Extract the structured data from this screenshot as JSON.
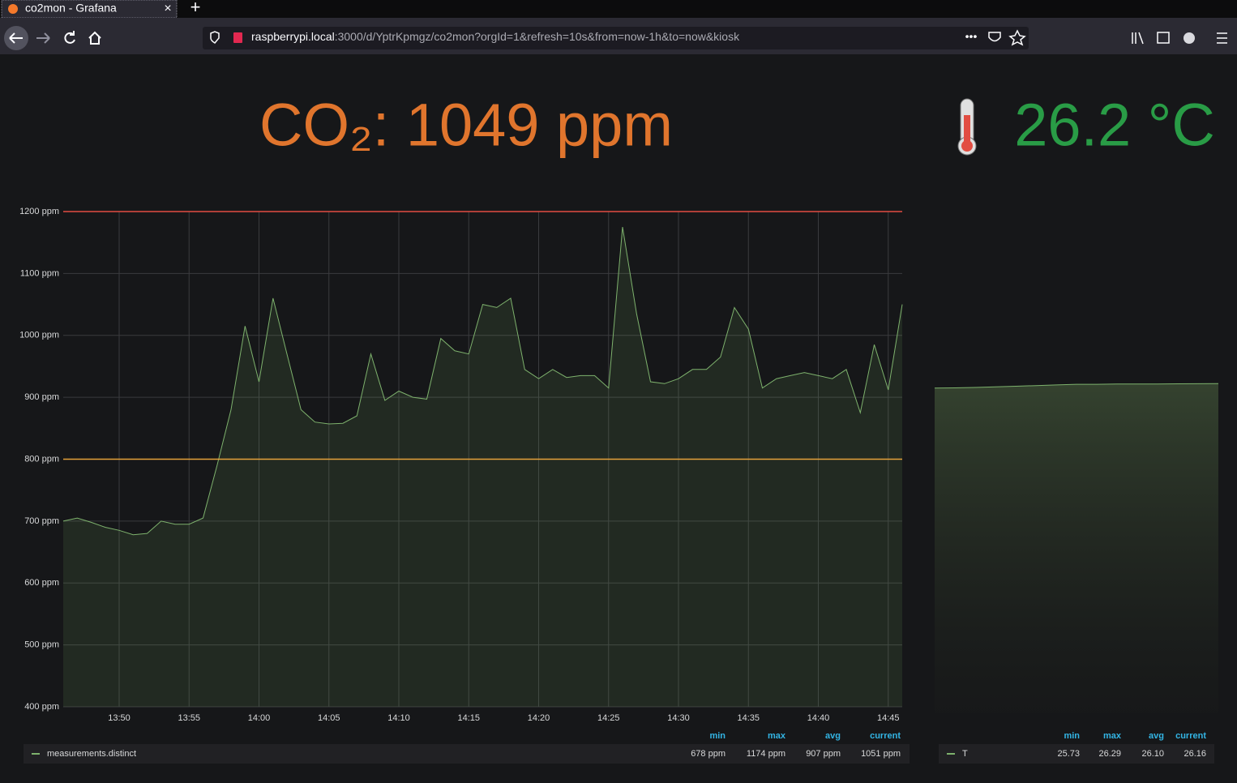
{
  "browser": {
    "tab_title": "co2mon - Grafana",
    "url_host": "raspberrypi.local",
    "url_rest": ":3000/d/YptrKpmgz/co2mon?orgId=1&refresh=10s&from=now-1h&to=now&kiosk"
  },
  "stats": {
    "co2": "CO₂: 1049 ppm",
    "temperature": "26.2 °C"
  },
  "chart_data": [
    {
      "type": "line",
      "xlim": [
        "13:46",
        "14:46"
      ],
      "xticks": [
        "13:50",
        "13:55",
        "14:00",
        "14:05",
        "14:10",
        "14:15",
        "14:20",
        "14:25",
        "14:30",
        "14:35",
        "14:40",
        "14:45"
      ],
      "ylim": [
        400,
        1200
      ],
      "yticks": [
        {
          "value": 400,
          "label": "400 ppm"
        },
        {
          "value": 500,
          "label": "500 ppm"
        },
        {
          "value": 600,
          "label": "600 ppm"
        },
        {
          "value": 700,
          "label": "700 ppm"
        },
        {
          "value": 800,
          "label": "800 ppm"
        },
        {
          "value": 900,
          "label": "900 ppm"
        },
        {
          "value": 1000,
          "label": "1000 ppm"
        },
        {
          "value": 1100,
          "label": "1100 ppm"
        },
        {
          "value": 1200,
          "label": "1200 ppm"
        }
      ],
      "grid": true,
      "thresholds": [
        {
          "value": 800,
          "color": "#e5a13a"
        },
        {
          "value": 1200,
          "color": "#e24d42"
        }
      ],
      "x": [
        "13:46",
        "13:47",
        "13:48",
        "13:49",
        "13:50",
        "13:51",
        "13:52",
        "13:53",
        "13:54",
        "13:55",
        "13:56",
        "13:57",
        "13:58",
        "13:59",
        "14:00",
        "14:01",
        "14:02",
        "14:03",
        "14:04",
        "14:05",
        "14:06",
        "14:07",
        "14:08",
        "14:09",
        "14:10",
        "14:11",
        "14:12",
        "14:13",
        "14:14",
        "14:15",
        "14:16",
        "14:17",
        "14:18",
        "14:19",
        "14:20",
        "14:21",
        "14:22",
        "14:23",
        "14:24",
        "14:25",
        "14:26",
        "14:27",
        "14:28",
        "14:29",
        "14:30",
        "14:31",
        "14:32",
        "14:33",
        "14:34",
        "14:35",
        "14:36",
        "14:37",
        "14:38",
        "14:39",
        "14:40",
        "14:41",
        "14:42",
        "14:43",
        "14:44",
        "14:45",
        "14:46"
      ],
      "series": [
        {
          "name": "measurements.distinct",
          "color": "#7eb26d",
          "values": [
            700,
            705,
            698,
            690,
            685,
            678,
            680,
            700,
            695,
            695,
            705,
            790,
            880,
            1015,
            925,
            1060,
            970,
            880,
            860,
            857,
            858,
            870,
            970,
            895,
            910,
            900,
            897,
            995,
            975,
            970,
            1050,
            1045,
            1060,
            945,
            930,
            945,
            932,
            935,
            935,
            915,
            1175,
            1035,
            925,
            922,
            930,
            945,
            945,
            965,
            1045,
            1010,
            915,
            930,
            935,
            940,
            935,
            930,
            945,
            875,
            985,
            912,
            1050
          ]
        }
      ]
    },
    {
      "type": "line",
      "ylim": [
        0,
        40
      ],
      "series": [
        {
          "name": "T",
          "color": "#7eb26d",
          "values": [
            25.8,
            25.82,
            25.85,
            25.9,
            25.95,
            26.0,
            26.05,
            26.1,
            26.1,
            26.12,
            26.12,
            26.13,
            26.14,
            26.15,
            26.16
          ]
        }
      ]
    }
  ],
  "legends": [
    {
      "headers": [
        "min",
        "max",
        "avg",
        "current"
      ],
      "values": [
        "678 ppm",
        "1174 ppm",
        "907 ppm",
        "1051 ppm"
      ]
    },
    {
      "headers": [
        "min",
        "max",
        "avg",
        "current"
      ],
      "values": [
        "25.73",
        "26.29",
        "26.10",
        "26.16"
      ]
    }
  ]
}
